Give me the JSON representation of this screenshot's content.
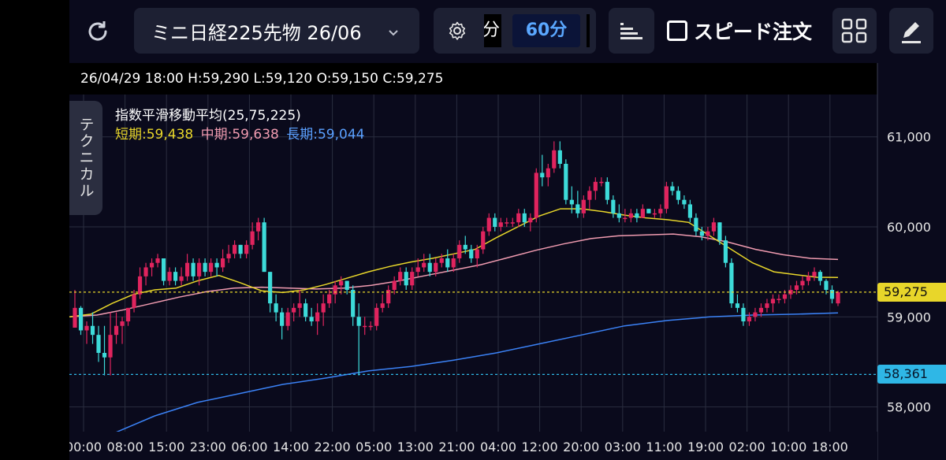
{
  "toolbar": {
    "symbol": "ミニ日経225先物 26/06",
    "interval_cut": "分",
    "interval_active": "60分",
    "speed_order": "スピード注文",
    "icons": [
      "refresh-icon",
      "chevron-down-icon",
      "gear-icon",
      "bar-style-icon",
      "grid-icon",
      "pencil-icon"
    ]
  },
  "ohlc_line": "26/04/29 18:00 H:59,290 L:59,120 O:59,150 C:59,275",
  "side_tab": "テクニカル",
  "indicator": {
    "title": "指数平滑移動平均(25,75,225)",
    "short_label": "短期:59,438",
    "mid_label": "中期:59,638",
    "long_label": "長期:59,044"
  },
  "colors": {
    "up": "#e0245e",
    "down": "#3ddbd9",
    "short": "#e8d62a",
    "mid": "#f09bb0",
    "long": "#3b82f6",
    "grid": "#2a2d3f",
    "last_price_line": "#e8d62a",
    "ref_line": "#2fb7e6"
  },
  "chart_data": {
    "type": "candlestick",
    "title": "ミニ日経225先物 26/06",
    "interval": "60分",
    "y_axis": {
      "ticks": [
        "61,000",
        "60,000",
        "59,000",
        "58,000"
      ],
      "ylim": [
        57800,
        61300
      ]
    },
    "x_axis": {
      "ticks": [
        "00:00",
        "08:00",
        "15:00",
        "23:00",
        "06:00",
        "14:00",
        "22:00",
        "05:00",
        "13:00",
        "21:00",
        "04:00",
        "12:00",
        "20:00",
        "03:00",
        "11:00",
        "19:00",
        "02:00",
        "10:00",
        "18:00"
      ]
    },
    "last_price": {
      "value": 59275,
      "label": "59,275"
    },
    "ref_price": {
      "value": 58361,
      "label": "58,361"
    },
    "ohlc": [
      [
        58880,
        59300,
        58880,
        59100
      ],
      [
        59100,
        59120,
        58800,
        58850
      ],
      [
        58850,
        58950,
        58700,
        58900
      ],
      [
        58900,
        59050,
        58700,
        58800
      ],
      [
        58800,
        58900,
        58500,
        58600
      ],
      [
        58600,
        58900,
        58350,
        58550
      ],
      [
        58550,
        59050,
        58350,
        58800
      ],
      [
        58800,
        59050,
        58700,
        58900
      ],
      [
        58900,
        59000,
        58700,
        58950
      ],
      [
        58950,
        59100,
        58900,
        59100
      ],
      [
        59100,
        59300,
        59050,
        59250
      ],
      [
        59250,
        59550,
        59200,
        59450
      ],
      [
        59450,
        59600,
        59350,
        59550
      ],
      [
        59550,
        59650,
        59450,
        59600
      ],
      [
        59600,
        59700,
        59550,
        59650
      ],
      [
        59650,
        59620,
        59350,
        59400
      ],
      [
        59400,
        59550,
        59350,
        59500
      ],
      [
        59500,
        59550,
        59350,
        59400
      ],
      [
        59400,
        59550,
        59350,
        59450
      ],
      [
        59450,
        59700,
        59400,
        59600
      ],
      [
        59600,
        59650,
        59400,
        59450
      ],
      [
        59450,
        59650,
        59350,
        59600
      ],
      [
        59600,
        59650,
        59450,
        59500
      ],
      [
        59500,
        59650,
        59450,
        59600
      ],
      [
        59600,
        59650,
        59450,
        59550
      ],
      [
        59550,
        59750,
        59500,
        59650
      ],
      [
        59650,
        59800,
        59600,
        59700
      ],
      [
        59700,
        59850,
        59650,
        59800
      ],
      [
        59800,
        59800,
        59650,
        59700
      ],
      [
        59700,
        59850,
        59650,
        59800
      ],
      [
        59800,
        60050,
        59750,
        59950
      ],
      [
        59950,
        60100,
        59850,
        60050
      ],
      [
        60050,
        60100,
        59500,
        59500
      ],
      [
        59500,
        59500,
        59050,
        59150
      ],
      [
        59150,
        59250,
        58950,
        59050
      ],
      [
        59050,
        59100,
        58750,
        58900
      ],
      [
        58900,
        59100,
        58850,
        59050
      ],
      [
        59050,
        59150,
        58950,
        59100
      ],
      [
        59100,
        59300,
        59000,
        59150
      ],
      [
        59150,
        59200,
        58950,
        59000
      ],
      [
        59000,
        59100,
        58900,
        58950
      ],
      [
        58950,
        59150,
        58800,
        59050
      ],
      [
        59050,
        59250,
        58900,
        59150
      ],
      [
        59150,
        59300,
        59100,
        59250
      ],
      [
        59250,
        59400,
        59150,
        59350
      ],
      [
        59350,
        59450,
        59250,
        59400
      ],
      [
        59400,
        59400,
        59250,
        59300
      ],
      [
        59300,
        59350,
        58900,
        59000
      ],
      [
        59000,
        59150,
        58350,
        58900
      ],
      [
        58900,
        59000,
        58800,
        58900
      ],
      [
        58900,
        58950,
        58850,
        58900
      ],
      [
        58900,
        59150,
        58850,
        59100
      ],
      [
        59100,
        59250,
        59050,
        59150
      ],
      [
        59150,
        59350,
        59100,
        59300
      ],
      [
        59300,
        59450,
        59250,
        59400
      ],
      [
        59400,
        59550,
        59350,
        59500
      ],
      [
        59500,
        59550,
        59300,
        59350
      ],
      [
        59350,
        59550,
        59300,
        59500
      ],
      [
        59500,
        59650,
        59450,
        59550
      ],
      [
        59550,
        59700,
        59500,
        59600
      ],
      [
        59600,
        59700,
        59450,
        59500
      ],
      [
        59500,
        59650,
        59450,
        59600
      ],
      [
        59600,
        59700,
        59550,
        59650
      ],
      [
        59650,
        59750,
        59500,
        59550
      ],
      [
        59550,
        59700,
        59500,
        59650
      ],
      [
        59650,
        59850,
        59600,
        59800
      ],
      [
        59800,
        59900,
        59700,
        59750
      ],
      [
        59750,
        59800,
        59600,
        59650
      ],
      [
        59650,
        59800,
        59550,
        59750
      ],
      [
        59750,
        60000,
        59700,
        59950
      ],
      [
        59950,
        60150,
        59900,
        60100
      ],
      [
        60100,
        60150,
        59950,
        60000
      ],
      [
        60000,
        60100,
        59950,
        60050
      ],
      [
        60050,
        60100,
        60000,
        60050
      ],
      [
        60050,
        60100,
        60000,
        60050
      ],
      [
        60050,
        60200,
        60000,
        60150
      ],
      [
        60150,
        60200,
        60000,
        60050
      ],
      [
        60050,
        60150,
        59950,
        60100
      ],
      [
        60100,
        60650,
        60050,
        60600
      ],
      [
        60600,
        60800,
        60450,
        60550
      ],
      [
        60550,
        60700,
        60450,
        60650
      ],
      [
        60650,
        60950,
        60600,
        60850
      ],
      [
        60850,
        60950,
        60650,
        60700
      ],
      [
        60700,
        60750,
        60250,
        60300
      ],
      [
        60300,
        60450,
        60150,
        60250
      ],
      [
        60250,
        60400,
        60100,
        60150
      ],
      [
        60150,
        60350,
        60100,
        60300
      ],
      [
        60300,
        60450,
        60200,
        60400
      ],
      [
        60400,
        60550,
        60300,
        60500
      ],
      [
        60500,
        60550,
        60450,
        60500
      ],
      [
        60500,
        60550,
        60250,
        60300
      ],
      [
        60300,
        60350,
        60100,
        60150
      ],
      [
        60150,
        60250,
        60050,
        60100
      ],
      [
        60100,
        60200,
        60050,
        60100
      ],
      [
        60100,
        60200,
        60050,
        60150
      ],
      [
        60150,
        60200,
        60050,
        60100
      ],
      [
        60100,
        60250,
        60100,
        60200
      ],
      [
        60200,
        60200,
        60150,
        60150
      ],
      [
        60150,
        60200,
        60100,
        60150
      ],
      [
        60150,
        60250,
        60100,
        60200
      ],
      [
        60200,
        60500,
        60150,
        60450
      ],
      [
        60450,
        60500,
        60350,
        60400
      ],
      [
        60400,
        60450,
        60250,
        60300
      ],
      [
        60300,
        60350,
        60200,
        60250
      ],
      [
        60250,
        60300,
        60050,
        60100
      ],
      [
        60100,
        60150,
        59900,
        59950
      ],
      [
        59950,
        60000,
        59850,
        59900
      ],
      [
        59900,
        60000,
        59850,
        59950
      ],
      [
        59950,
        60100,
        59900,
        60050
      ],
      [
        60050,
        60050,
        59800,
        59850
      ],
      [
        59850,
        59900,
        59550,
        59600
      ],
      [
        59600,
        59650,
        59100,
        59150
      ],
      [
        59150,
        59250,
        59050,
        59100
      ],
      [
        59100,
        59150,
        58900,
        58950
      ],
      [
        58950,
        59050,
        58900,
        59000
      ],
      [
        59000,
        59100,
        58950,
        59050
      ],
      [
        59050,
        59150,
        59000,
        59100
      ],
      [
        59100,
        59200,
        59050,
        59150
      ],
      [
        59150,
        59250,
        59050,
        59200
      ],
      [
        59200,
        59250,
        59150,
        59200
      ],
      [
        59200,
        59300,
        59150,
        59250
      ],
      [
        59250,
        59350,
        59200,
        59300
      ],
      [
        59300,
        59400,
        59250,
        59350
      ],
      [
        59350,
        59450,
        59300,
        59400
      ],
      [
        59400,
        59500,
        59350,
        59450
      ],
      [
        59450,
        59550,
        59400,
        59500
      ],
      [
        59500,
        59520,
        59350,
        59400
      ],
      [
        59400,
        59420,
        59250,
        59300
      ],
      [
        59300,
        59350,
        59150,
        59200
      ],
      [
        59150,
        59290,
        59120,
        59275
      ]
    ],
    "ema_short": [
      59000,
      59030,
      59150,
      59250,
      59300,
      59320,
      59400,
      59460,
      59380,
      59290,
      59270,
      59300,
      59360,
      59430,
      59500,
      59560,
      59610,
      59650,
      59700,
      59750,
      59880,
      60000,
      60120,
      60200,
      60200,
      60170,
      60130,
      60100,
      60080,
      60050,
      59900,
      59750,
      59600,
      59500,
      59470,
      59440,
      59438
    ],
    "ema_mid": [
      59000,
      59020,
      59080,
      59150,
      59220,
      59280,
      59320,
      59330,
      59320,
      59310,
      59320,
      59350,
      59400,
      59460,
      59520,
      59580,
      59660,
      59740,
      59810,
      59870,
      59900,
      59910,
      59920,
      59890,
      59830,
      59750,
      59690,
      59650,
      59638
    ],
    "ema_long": [
      57550,
      57700,
      57900,
      58050,
      58150,
      58250,
      58320,
      58400,
      58450,
      58520,
      58600,
      58700,
      58800,
      58900,
      58960,
      59000,
      59020,
      59030,
      59044
    ]
  }
}
